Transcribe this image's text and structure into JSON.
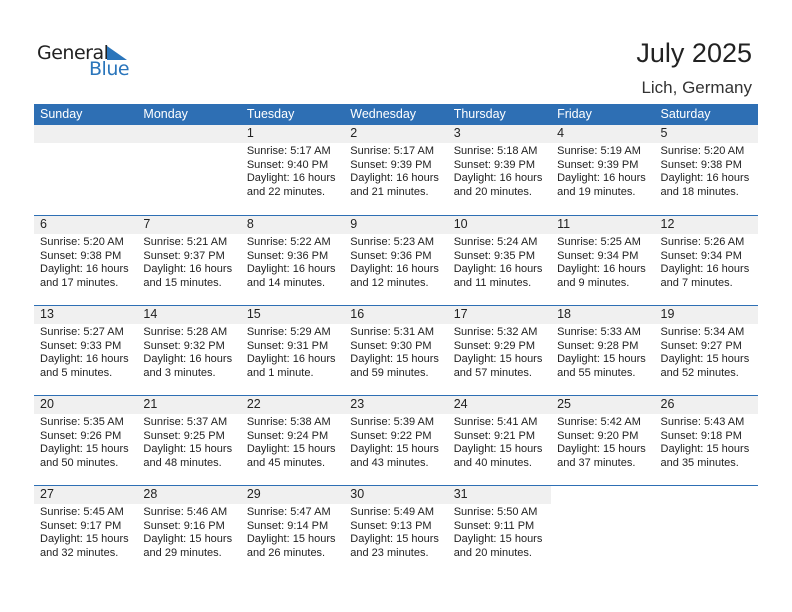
{
  "logo": {
    "text1": "General",
    "text2": "Blue"
  },
  "title": "July 2025",
  "location": "Lich, Germany",
  "colors": {
    "header": "#2e6fb4",
    "date_band": "#f0f0f0"
  },
  "weekdays": [
    "Sunday",
    "Monday",
    "Tuesday",
    "Wednesday",
    "Thursday",
    "Friday",
    "Saturday"
  ],
  "leading_blank_days": 2,
  "days": [
    {
      "day": "1",
      "sunrise": "Sunrise: 5:17 AM",
      "sunset": "Sunset: 9:40 PM",
      "daylight": "Daylight: 16 hours",
      "minutes": "and 22 minutes."
    },
    {
      "day": "2",
      "sunrise": "Sunrise: 5:17 AM",
      "sunset": "Sunset: 9:39 PM",
      "daylight": "Daylight: 16 hours",
      "minutes": "and 21 minutes."
    },
    {
      "day": "3",
      "sunrise": "Sunrise: 5:18 AM",
      "sunset": "Sunset: 9:39 PM",
      "daylight": "Daylight: 16 hours",
      "minutes": "and 20 minutes."
    },
    {
      "day": "4",
      "sunrise": "Sunrise: 5:19 AM",
      "sunset": "Sunset: 9:39 PM",
      "daylight": "Daylight: 16 hours",
      "minutes": "and 19 minutes."
    },
    {
      "day": "5",
      "sunrise": "Sunrise: 5:20 AM",
      "sunset": "Sunset: 9:38 PM",
      "daylight": "Daylight: 16 hours",
      "minutes": "and 18 minutes."
    },
    {
      "day": "6",
      "sunrise": "Sunrise: 5:20 AM",
      "sunset": "Sunset: 9:38 PM",
      "daylight": "Daylight: 16 hours",
      "minutes": "and 17 minutes."
    },
    {
      "day": "7",
      "sunrise": "Sunrise: 5:21 AM",
      "sunset": "Sunset: 9:37 PM",
      "daylight": "Daylight: 16 hours",
      "minutes": "and 15 minutes."
    },
    {
      "day": "8",
      "sunrise": "Sunrise: 5:22 AM",
      "sunset": "Sunset: 9:36 PM",
      "daylight": "Daylight: 16 hours",
      "minutes": "and 14 minutes."
    },
    {
      "day": "9",
      "sunrise": "Sunrise: 5:23 AM",
      "sunset": "Sunset: 9:36 PM",
      "daylight": "Daylight: 16 hours",
      "minutes": "and 12 minutes."
    },
    {
      "day": "10",
      "sunrise": "Sunrise: 5:24 AM",
      "sunset": "Sunset: 9:35 PM",
      "daylight": "Daylight: 16 hours",
      "minutes": "and 11 minutes."
    },
    {
      "day": "11",
      "sunrise": "Sunrise: 5:25 AM",
      "sunset": "Sunset: 9:34 PM",
      "daylight": "Daylight: 16 hours",
      "minutes": "and 9 minutes."
    },
    {
      "day": "12",
      "sunrise": "Sunrise: 5:26 AM",
      "sunset": "Sunset: 9:34 PM",
      "daylight": "Daylight: 16 hours",
      "minutes": "and 7 minutes."
    },
    {
      "day": "13",
      "sunrise": "Sunrise: 5:27 AM",
      "sunset": "Sunset: 9:33 PM",
      "daylight": "Daylight: 16 hours",
      "minutes": "and 5 minutes."
    },
    {
      "day": "14",
      "sunrise": "Sunrise: 5:28 AM",
      "sunset": "Sunset: 9:32 PM",
      "daylight": "Daylight: 16 hours",
      "minutes": "and 3 minutes."
    },
    {
      "day": "15",
      "sunrise": "Sunrise: 5:29 AM",
      "sunset": "Sunset: 9:31 PM",
      "daylight": "Daylight: 16 hours",
      "minutes": "and 1 minute."
    },
    {
      "day": "16",
      "sunrise": "Sunrise: 5:31 AM",
      "sunset": "Sunset: 9:30 PM",
      "daylight": "Daylight: 15 hours",
      "minutes": "and 59 minutes."
    },
    {
      "day": "17",
      "sunrise": "Sunrise: 5:32 AM",
      "sunset": "Sunset: 9:29 PM",
      "daylight": "Daylight: 15 hours",
      "minutes": "and 57 minutes."
    },
    {
      "day": "18",
      "sunrise": "Sunrise: 5:33 AM",
      "sunset": "Sunset: 9:28 PM",
      "daylight": "Daylight: 15 hours",
      "minutes": "and 55 minutes."
    },
    {
      "day": "19",
      "sunrise": "Sunrise: 5:34 AM",
      "sunset": "Sunset: 9:27 PM",
      "daylight": "Daylight: 15 hours",
      "minutes": "and 52 minutes."
    },
    {
      "day": "20",
      "sunrise": "Sunrise: 5:35 AM",
      "sunset": "Sunset: 9:26 PM",
      "daylight": "Daylight: 15 hours",
      "minutes": "and 50 minutes."
    },
    {
      "day": "21",
      "sunrise": "Sunrise: 5:37 AM",
      "sunset": "Sunset: 9:25 PM",
      "daylight": "Daylight: 15 hours",
      "minutes": "and 48 minutes."
    },
    {
      "day": "22",
      "sunrise": "Sunrise: 5:38 AM",
      "sunset": "Sunset: 9:24 PM",
      "daylight": "Daylight: 15 hours",
      "minutes": "and 45 minutes."
    },
    {
      "day": "23",
      "sunrise": "Sunrise: 5:39 AM",
      "sunset": "Sunset: 9:22 PM",
      "daylight": "Daylight: 15 hours",
      "minutes": "and 43 minutes."
    },
    {
      "day": "24",
      "sunrise": "Sunrise: 5:41 AM",
      "sunset": "Sunset: 9:21 PM",
      "daylight": "Daylight: 15 hours",
      "minutes": "and 40 minutes."
    },
    {
      "day": "25",
      "sunrise": "Sunrise: 5:42 AM",
      "sunset": "Sunset: 9:20 PM",
      "daylight": "Daylight: 15 hours",
      "minutes": "and 37 minutes."
    },
    {
      "day": "26",
      "sunrise": "Sunrise: 5:43 AM",
      "sunset": "Sunset: 9:18 PM",
      "daylight": "Daylight: 15 hours",
      "minutes": "and 35 minutes."
    },
    {
      "day": "27",
      "sunrise": "Sunrise: 5:45 AM",
      "sunset": "Sunset: 9:17 PM",
      "daylight": "Daylight: 15 hours",
      "minutes": "and 32 minutes."
    },
    {
      "day": "28",
      "sunrise": "Sunrise: 5:46 AM",
      "sunset": "Sunset: 9:16 PM",
      "daylight": "Daylight: 15 hours",
      "minutes": "and 29 minutes."
    },
    {
      "day": "29",
      "sunrise": "Sunrise: 5:47 AM",
      "sunset": "Sunset: 9:14 PM",
      "daylight": "Daylight: 15 hours",
      "minutes": "and 26 minutes."
    },
    {
      "day": "30",
      "sunrise": "Sunrise: 5:49 AM",
      "sunset": "Sunset: 9:13 PM",
      "daylight": "Daylight: 15 hours",
      "minutes": "and 23 minutes."
    },
    {
      "day": "31",
      "sunrise": "Sunrise: 5:50 AM",
      "sunset": "Sunset: 9:11 PM",
      "daylight": "Daylight: 15 hours",
      "minutes": "and 20 minutes."
    }
  ]
}
